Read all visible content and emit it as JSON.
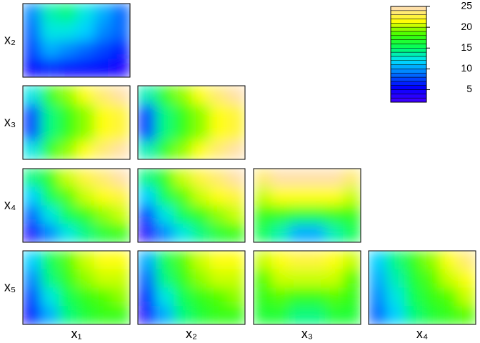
{
  "chart_data": {
    "type": "contour",
    "row_labels": [
      "x₂",
      "x₃",
      "x₄",
      "x₅"
    ],
    "col_labels": [
      "x₁",
      "x₂",
      "x₃",
      "x₄"
    ],
    "zlim": [
      2,
      25
    ],
    "zticks": [
      5,
      10,
      15,
      20,
      25
    ],
    "breaks": [
      2,
      3,
      4,
      5,
      6,
      7,
      8,
      9,
      10,
      11,
      12,
      13,
      14,
      15,
      16,
      17,
      18,
      19,
      20,
      21,
      22,
      23,
      24,
      25
    ],
    "colorscale": [
      "#3a00ff",
      "#0000ff",
      "#0070ff",
      "#00e0ff",
      "#00ff60",
      "#40ff00",
      "#ffff00",
      "#ffe0a8"
    ],
    "panels": [
      [
        [
          [
            9,
            13,
            14,
            12,
            10,
            8
          ],
          [
            8,
            12,
            12,
            11,
            9,
            8
          ],
          [
            7,
            10,
            9,
            8,
            7,
            6
          ],
          [
            5,
            6,
            5,
            5,
            5,
            4
          ]
        ]
      ],
      [
        [
          [
            12,
            17,
            19,
            21,
            23,
            24
          ],
          [
            7,
            14,
            17,
            19,
            21,
            22
          ],
          [
            7,
            14,
            17,
            19,
            21,
            22
          ],
          [
            12,
            17,
            19,
            21,
            23,
            24
          ]
        ],
        [
          [
            13,
            17,
            19,
            21,
            23,
            24
          ],
          [
            7,
            14,
            17,
            19,
            21,
            22
          ],
          [
            7,
            14,
            17,
            19,
            21,
            22
          ],
          [
            13,
            17,
            19,
            21,
            23,
            24
          ]
        ]
      ],
      [
        [
          [
            14,
            17,
            20,
            22,
            23,
            24
          ],
          [
            11,
            15,
            18,
            20,
            21,
            22
          ],
          [
            8,
            12,
            15,
            17,
            19,
            20
          ],
          [
            4,
            9,
            12,
            14,
            16,
            17
          ]
        ],
        [
          [
            14,
            17,
            20,
            22,
            23,
            24
          ],
          [
            11,
            15,
            18,
            20,
            21,
            22
          ],
          [
            7,
            12,
            15,
            17,
            19,
            20
          ],
          [
            3,
            9,
            12,
            14,
            16,
            17
          ]
        ],
        [
          [
            23,
            24,
            24,
            24,
            24,
            23
          ],
          [
            20,
            21,
            21,
            21,
            21,
            20
          ],
          [
            17,
            17,
            16,
            16,
            17,
            17
          ],
          [
            15,
            13,
            10,
            10,
            13,
            15
          ]
        ]
      ],
      [
        [
          [
            11,
            15,
            18,
            20,
            21,
            21
          ],
          [
            9,
            14,
            17,
            19,
            20,
            20
          ],
          [
            7,
            12,
            15,
            17,
            18,
            19
          ],
          [
            5,
            10,
            14,
            16,
            17,
            17
          ]
        ],
        [
          [
            10,
            15,
            18,
            20,
            21,
            21
          ],
          [
            8,
            14,
            17,
            19,
            20,
            20
          ],
          [
            6,
            12,
            15,
            17,
            18,
            19
          ],
          [
            4,
            10,
            14,
            16,
            17,
            17
          ]
        ],
        [
          [
            20,
            21,
            22,
            22,
            21,
            20
          ],
          [
            18,
            20,
            20,
            20,
            20,
            18
          ],
          [
            17,
            18,
            17,
            17,
            18,
            17
          ],
          [
            16,
            16,
            14,
            14,
            16,
            16
          ]
        ],
        [
          [
            11,
            14,
            17,
            19,
            21,
            23
          ],
          [
            10,
            13,
            16,
            18,
            20,
            21
          ],
          [
            9,
            12,
            15,
            17,
            18,
            20
          ],
          [
            8,
            11,
            14,
            16,
            17,
            18
          ]
        ]
      ]
    ]
  }
}
